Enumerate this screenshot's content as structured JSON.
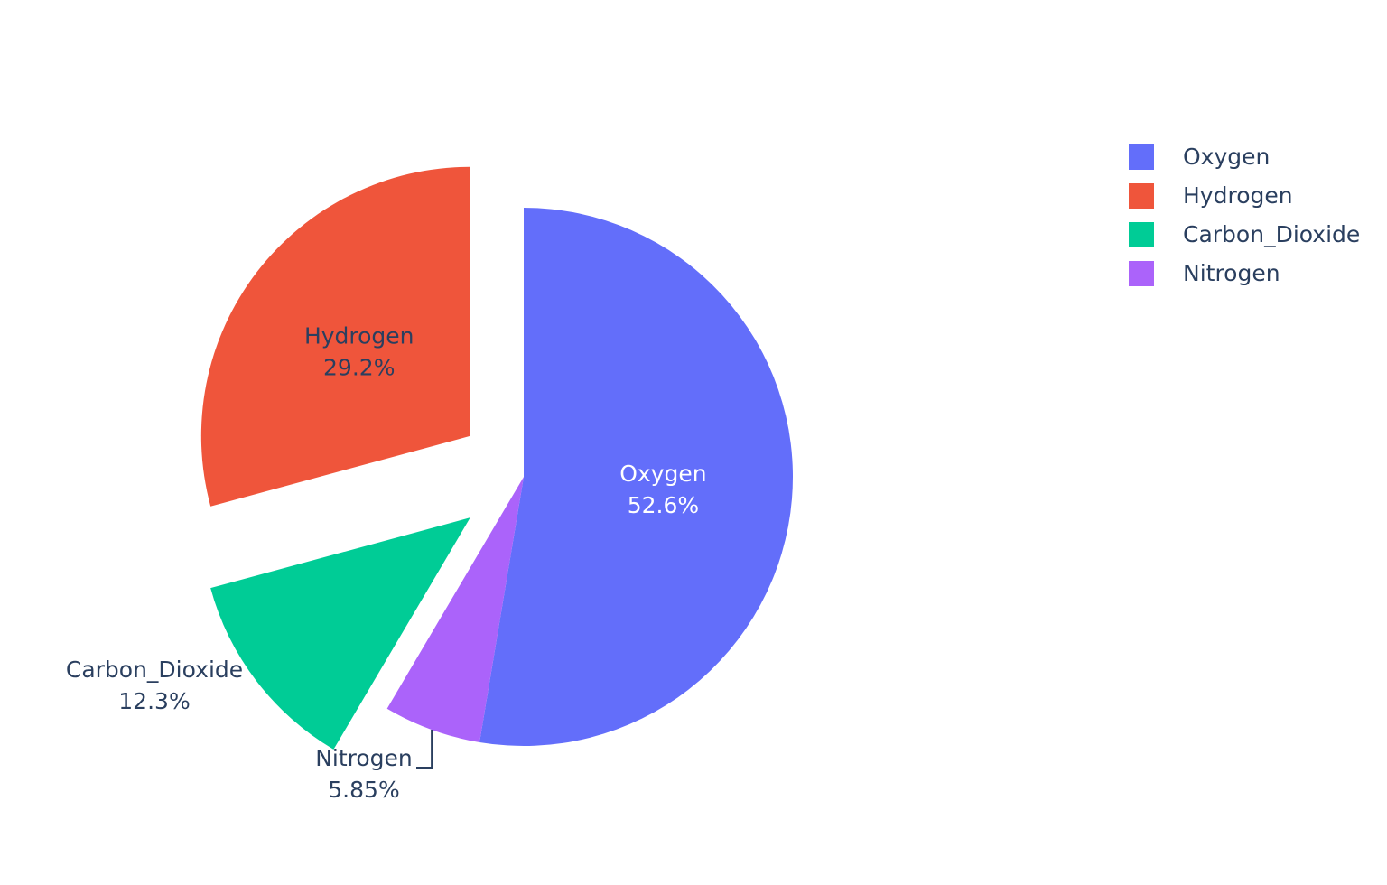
{
  "chart_data": {
    "type": "pie",
    "direction": "clockwise",
    "start_angle": 90,
    "slices": [
      {
        "label": "Oxygen",
        "percent_label": "52.6%",
        "value": 52.6,
        "color": "#636efa",
        "pulled": false,
        "text_position": "inside",
        "text_color": "#ffffff"
      },
      {
        "label": "Nitrogen",
        "percent_label": "5.85%",
        "value": 5.85,
        "color": "#ab63fa",
        "pulled": false,
        "text_position": "outside",
        "text_color": "#2a3f5f"
      },
      {
        "label": "Carbon_Dioxide",
        "percent_label": "12.3%",
        "value": 12.3,
        "color": "#00cc96",
        "pulled": true,
        "text_position": "outside",
        "text_color": "#2a3f5f"
      },
      {
        "label": "Hydrogen",
        "percent_label": "29.2%",
        "value": 29.2,
        "color": "#ef553b",
        "pulled": true,
        "text_position": "inside",
        "text_color": "#2a3f5f"
      }
    ],
    "legend": {
      "placement": "top-right",
      "items": [
        {
          "label": "Oxygen",
          "color": "#636efa"
        },
        {
          "label": "Hydrogen",
          "color": "#ef553b"
        },
        {
          "label": "Carbon_Dioxide",
          "color": "#00cc96"
        },
        {
          "label": "Nitrogen",
          "color": "#ab63fa"
        }
      ]
    }
  }
}
